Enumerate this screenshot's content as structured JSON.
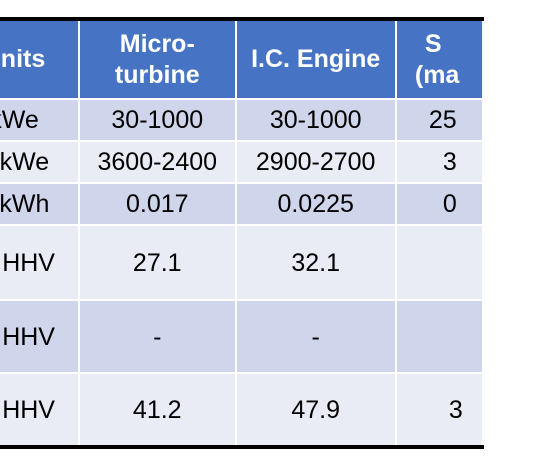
{
  "table": {
    "headers": {
      "units": "Units",
      "microturbine": [
        "Micro-",
        "turbine"
      ],
      "ic_engine": "I.C. Engine",
      "partial": [
        "S",
        "(ma"
      ]
    },
    "rows": [
      {
        "units": "kWe",
        "microturbine": "30-1000",
        "ic_engine": "30-1000",
        "partial": "25"
      },
      {
        "units": "$/kWe",
        "microturbine": "3600-2400",
        "ic_engine": "2900-2700",
        "partial": "3"
      },
      {
        "units": "$/kWh",
        "microturbine": "0.017",
        "ic_engine": "0.0225",
        "partial": "0"
      },
      {
        "units": "% HHV",
        "microturbine": "27.1",
        "ic_engine": "32.1",
        "partial": ""
      },
      {
        "units": "% HHV",
        "microturbine": "-",
        "ic_engine": "-",
        "partial": ""
      },
      {
        "units": "% HHV",
        "microturbine": "41.2",
        "ic_engine": "47.9",
        "partial": "3"
      }
    ]
  },
  "colors": {
    "header_background": "#4673c4",
    "row_dark": "#cfd5ea",
    "row_light": "#e9ebf5",
    "rule": "#000000"
  }
}
